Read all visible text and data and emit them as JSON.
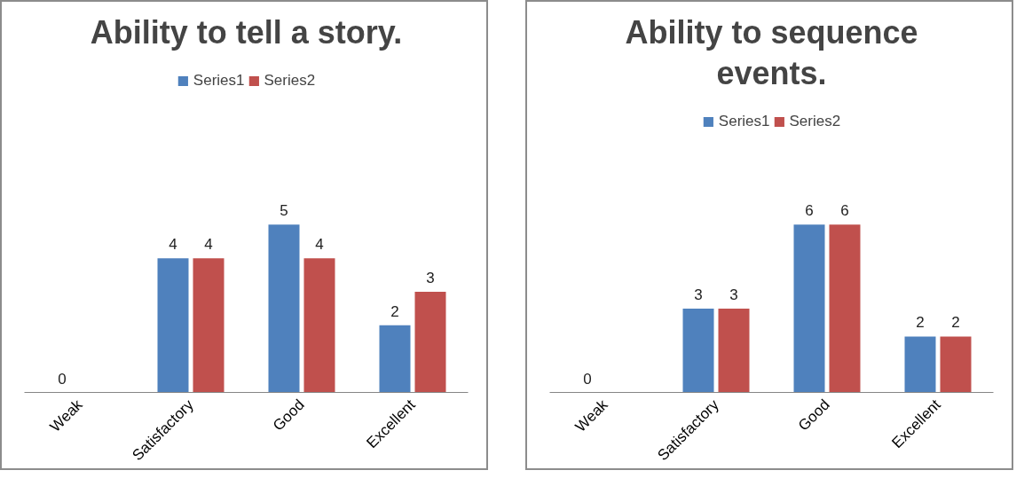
{
  "chart_data": [
    {
      "type": "bar",
      "title": "Ability to tell a story.",
      "categories": [
        "Weak",
        "Satisfactory",
        "Good",
        "Excellent"
      ],
      "series": [
        {
          "name": "Series1",
          "color": "#4f81bd",
          "values": [
            0,
            4,
            5,
            2
          ]
        },
        {
          "name": "Series2",
          "color": "#c0504d",
          "values": [
            null,
            4,
            4,
            3
          ]
        }
      ],
      "data_labels": true,
      "legend": "top",
      "grid": false,
      "tick_labels": "x"
    },
    {
      "type": "bar",
      "title": "Ability to sequence events.",
      "categories": [
        "Weak",
        "Satisfactory",
        "Good",
        "Excellent"
      ],
      "series": [
        {
          "name": "Series1",
          "color": "#4f81bd",
          "values": [
            0,
            3,
            6,
            2
          ]
        },
        {
          "name": "Series2",
          "color": "#c0504d",
          "values": [
            null,
            3,
            6,
            2
          ]
        }
      ],
      "data_labels": true,
      "legend": "top",
      "grid": false,
      "tick_labels": "x"
    }
  ]
}
